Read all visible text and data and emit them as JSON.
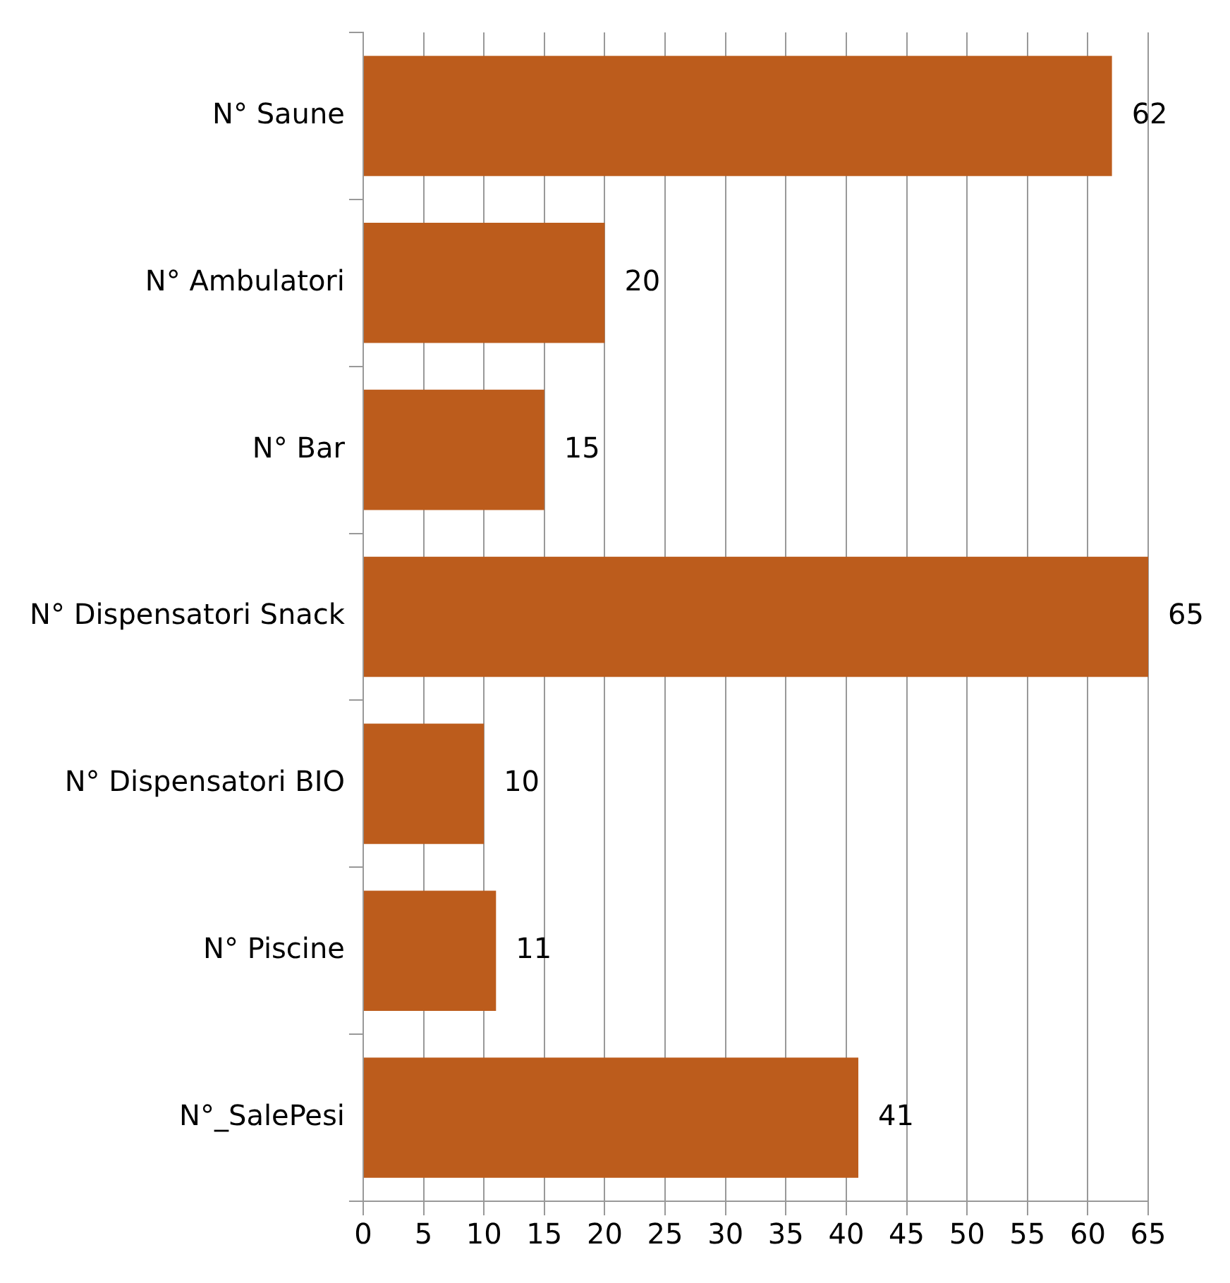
{
  "chart_data": {
    "type": "bar",
    "orientation": "horizontal",
    "categories": [
      "N° Saune",
      "N° Ambulatori",
      "N° Bar",
      "N° Dispensatori Snack",
      "N° Dispensatori BIO",
      "N° Piscine",
      "N°_SalePesi"
    ],
    "values": [
      62,
      20,
      15,
      65,
      10,
      11,
      41
    ],
    "color": "#bc5c1c",
    "xlim": [
      0,
      65
    ],
    "xticks": [
      0,
      5,
      10,
      15,
      20,
      25,
      30,
      35,
      40,
      45,
      50,
      55,
      60,
      65
    ],
    "grid": "x",
    "legend": false,
    "data_labels": true
  }
}
